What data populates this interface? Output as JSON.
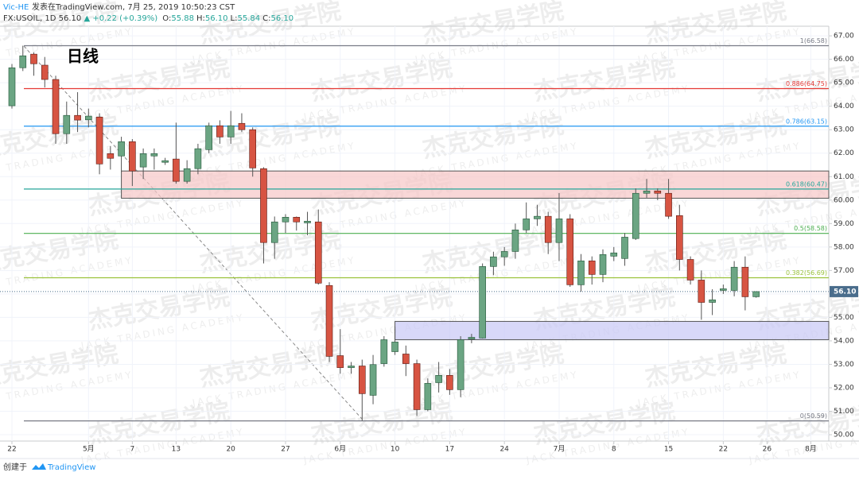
{
  "header": {
    "author": "Vic-HE",
    "published": "发表在TradingView.com, 7月 25, 2019 10:50:23 CST",
    "symbol": "FX:USOIL, 1D 56.10",
    "change": "▲ +0.22 (+0.39%)",
    "ohlc": [
      "O:",
      "55.88",
      "H:",
      "56.10",
      "L:",
      "55.84",
      "C:",
      "56.10"
    ]
  },
  "footer": {
    "created": "创建于",
    "brand": "TradingView"
  },
  "watermark": {
    "title": "杰克交易学院",
    "subtitle": "JACK TRADING ACADEMY"
  },
  "chart_data": {
    "type": "candlestick",
    "title": "日线",
    "open": [
      64.02,
      65.64,
      66.22,
      65.75,
      65.14,
      62.83,
      63.61,
      63.42,
      63.54,
      61.98,
      61.88,
      62.49,
      61.41,
      61.88,
      61.61,
      61.75,
      60.8,
      61.34,
      62.15,
      63.17,
      62.69,
      63.27,
      63.0,
      61.34,
      58.19,
      59.07,
      59.27,
      59.03,
      59.07,
      56.36,
      53.37,
      52.86,
      52.93,
      51.68,
      53.03,
      53.54,
      53.44,
      53.03,
      51.07,
      52.22,
      52.53,
      51.92,
      54.08,
      54.12,
      57.17,
      57.58,
      57.81,
      58.73,
      59.2,
      59.31,
      58.19,
      59.2,
      56.39,
      57.41,
      56.83,
      57.61,
      57.51,
      58.36,
      60.29,
      60.39,
      60.29,
      59.34,
      57.47,
      56.59,
      55.64,
      56.15,
      56.15,
      57.14,
      55.88
    ],
    "high": [
      65.8,
      66.58,
      66.3,
      66.1,
      65.3,
      64.2,
      64.6,
      63.9,
      63.7,
      62.3,
      62.7,
      62.6,
      62.2,
      62.2,
      61.8,
      63.3,
      61.7,
      62.4,
      63.3,
      63.4,
      63.8,
      63.7,
      63.1,
      61.4,
      59.3,
      59.4,
      59.3,
      59.5,
      59.6,
      56.5,
      54.5,
      53.1,
      53.2,
      53.4,
      54.2,
      54.6,
      53.8,
      53.2,
      52.4,
      53.1,
      52.8,
      54.2,
      54.3,
      57.3,
      57.8,
      58.0,
      59.0,
      59.9,
      59.8,
      59.5,
      60.3,
      59.4,
      57.7,
      57.6,
      57.9,
      58.0,
      58.6,
      60.5,
      60.9,
      60.5,
      60.9,
      59.8,
      57.6,
      57.0,
      56.2,
      56.4,
      57.4,
      57.6,
      56.1
    ],
    "low": [
      63.9,
      65.5,
      65.3,
      64.8,
      62.4,
      62.4,
      62.9,
      63.1,
      61.1,
      61.3,
      61.2,
      60.6,
      60.9,
      61.3,
      61.5,
      60.7,
      60.7,
      61.1,
      62.0,
      62.4,
      62.4,
      62.9,
      61.0,
      57.3,
      57.5,
      58.6,
      58.7,
      58.5,
      56.4,
      53.1,
      52.6,
      52.6,
      50.59,
      51.3,
      52.9,
      53.4,
      52.5,
      50.8,
      51.0,
      51.8,
      51.7,
      51.6,
      53.9,
      54.1,
      56.8,
      57.2,
      57.5,
      58.6,
      58.9,
      57.7,
      57.4,
      56.3,
      56.1,
      56.4,
      56.5,
      57.4,
      57.2,
      58.3,
      60.1,
      60.0,
      59.2,
      57.0,
      56.4,
      54.9,
      55.1,
      56.0,
      55.9,
      55.3,
      55.84
    ],
    "close": [
      65.64,
      66.15,
      65.81,
      65.14,
      62.83,
      63.61,
      63.41,
      63.58,
      61.54,
      61.78,
      62.49,
      61.24,
      61.98,
      61.98,
      61.68,
      60.8,
      61.34,
      62.19,
      63.17,
      62.69,
      63.17,
      63.0,
      61.37,
      58.19,
      59.07,
      59.27,
      59.07,
      59.1,
      56.46,
      53.34,
      52.86,
      52.93,
      51.75,
      52.99,
      54.05,
      53.95,
      53.03,
      51.07,
      52.19,
      52.53,
      51.92,
      54.05,
      54.15,
      57.17,
      57.58,
      57.81,
      58.73,
      59.2,
      59.31,
      58.19,
      59.2,
      56.39,
      57.41,
      56.83,
      57.68,
      57.75,
      58.42,
      60.29,
      60.39,
      60.29,
      59.31,
      57.47,
      56.59,
      55.64,
      55.75,
      56.22,
      57.14,
      55.88,
      56.1
    ],
    "up_color": "#6ba583",
    "down_color": "#d75442",
    "xlim": [
      -1.09,
      74.64
    ],
    "xticks": [
      {
        "value": 0,
        "label": "22"
      },
      {
        "value": 7,
        "label": "5月"
      },
      {
        "value": 11,
        "label": "7"
      },
      {
        "value": 15,
        "label": "13"
      },
      {
        "value": 20,
        "label": "20"
      },
      {
        "value": 25,
        "label": "27"
      },
      {
        "value": 30,
        "label": "6月"
      },
      {
        "value": 35,
        "label": "10"
      },
      {
        "value": 40,
        "label": "17"
      },
      {
        "value": 45,
        "label": "24"
      },
      {
        "value": 50,
        "label": "7月"
      },
      {
        "value": 55,
        "label": "8"
      },
      {
        "value": 60,
        "label": "15"
      },
      {
        "value": 65,
        "label": "22"
      },
      {
        "value": 69,
        "label": "26"
      },
      {
        "value": 73,
        "label": "8月"
      }
    ],
    "ylim": [
      49.73,
      67.41
    ],
    "yticks": [
      {
        "value": 50,
        "label": "50.00"
      },
      {
        "value": 51,
        "label": "51.00"
      },
      {
        "value": 52,
        "label": "52.00"
      },
      {
        "value": 53,
        "label": "53.00"
      },
      {
        "value": 54,
        "label": "54.00"
      },
      {
        "value": 55,
        "label": "55.00"
      },
      {
        "value": 56,
        "label": "56.00"
      },
      {
        "value": 57,
        "label": "57.00"
      },
      {
        "value": 58,
        "label": "58.00"
      },
      {
        "value": 59,
        "label": "59.00"
      },
      {
        "value": 60,
        "label": "60.00"
      },
      {
        "value": 61,
        "label": "61.00"
      },
      {
        "value": 62,
        "label": "62.00"
      },
      {
        "value": 63,
        "label": "63.00"
      },
      {
        "value": 64,
        "label": "64.00"
      },
      {
        "value": 65,
        "label": "65.00"
      },
      {
        "value": 66,
        "label": "66.00"
      },
      {
        "value": 67,
        "label": "67.00"
      }
    ],
    "grid": true,
    "levels": [
      {
        "value": 66.58,
        "label": "1(66.58)",
        "color": "#787b86"
      },
      {
        "value": 64.75,
        "label": "0.886(64.75)",
        "color": "#e53935"
      },
      {
        "value": 63.15,
        "label": "0.786(63.15)",
        "color": "#2196f3"
      },
      {
        "value": 60.47,
        "label": "0.618(60.47)",
        "color": "#26a69a"
      },
      {
        "value": 58.58,
        "label": "0.5(58.58)",
        "color": "#4caf50"
      },
      {
        "value": 56.69,
        "label": "0.382(56.69)",
        "color": "#9ac23c"
      },
      {
        "value": 50.59,
        "label": "0(50.59)",
        "color": "#787b86"
      }
    ],
    "zones": [
      {
        "start": 10,
        "from": 60.08,
        "to": 61.24,
        "color": "#f7c6c6",
        "border": "#555555"
      },
      {
        "start": 35,
        "from": 54.05,
        "to": 54.83,
        "color": "#c8c8f5",
        "border": "#555555"
      }
    ],
    "last_price": {
      "value": 56.1,
      "label": "56.10",
      "color": "#4a6d8c"
    }
  }
}
